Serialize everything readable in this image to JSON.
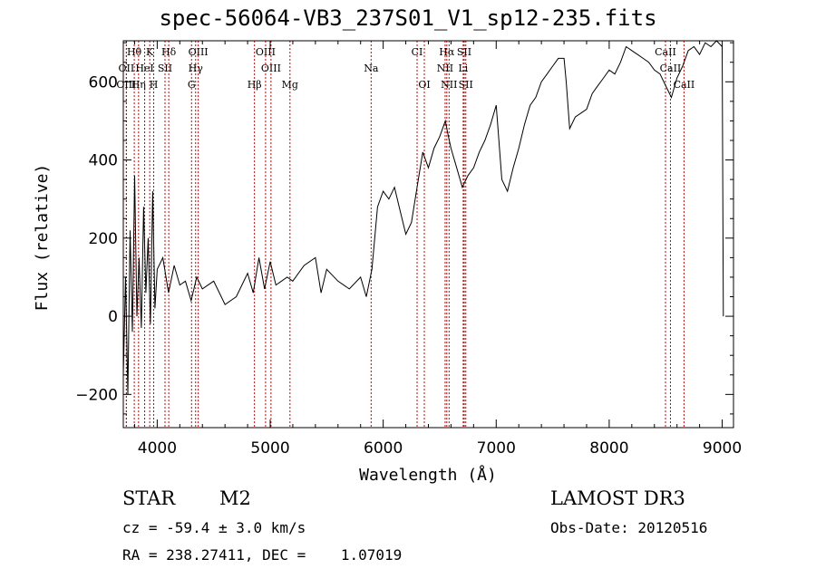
{
  "chart_data": {
    "type": "line",
    "title": "spec-56064-VB3_237S01_V1_sp12-235.fits",
    "xlabel": "Wavelength (Å)",
    "ylabel": "Flux (relative)",
    "xlim": [
      3700,
      9100
    ],
    "ylim": [
      -285,
      705
    ],
    "x_ticks": [
      4000,
      5000,
      6000,
      7000,
      8000,
      9000
    ],
    "y_ticks": [
      -200,
      0,
      200,
      400,
      600
    ],
    "series": [
      {
        "name": "spectrum",
        "x": [
          3700,
          3720,
          3740,
          3760,
          3780,
          3800,
          3820,
          3840,
          3860,
          3880,
          3900,
          3920,
          3940,
          3960,
          3980,
          4000,
          4050,
          4100,
          4150,
          4200,
          4250,
          4300,
          4350,
          4400,
          4500,
          4600,
          4700,
          4800,
          4850,
          4900,
          4950,
          5000,
          5050,
          5100,
          5150,
          5200,
          5300,
          5400,
          5450,
          5500,
          5600,
          5700,
          5800,
          5850,
          5900,
          5950,
          6000,
          6050,
          6100,
          6150,
          6200,
          6250,
          6300,
          6350,
          6400,
          6450,
          6500,
          6550,
          6570,
          6600,
          6650,
          6700,
          6750,
          6800,
          6850,
          6900,
          6950,
          7000,
          7050,
          7100,
          7150,
          7200,
          7250,
          7300,
          7350,
          7400,
          7450,
          7500,
          7550,
          7600,
          7620,
          7650,
          7700,
          7750,
          7800,
          7850,
          7900,
          7950,
          8000,
          8050,
          8100,
          8150,
          8200,
          8250,
          8300,
          8350,
          8400,
          8450,
          8500,
          8550,
          8600,
          8650,
          8700,
          8750,
          8800,
          8850,
          8900,
          8950,
          9000,
          9010
        ],
        "y": [
          -150,
          100,
          -200,
          220,
          -40,
          360,
          0,
          150,
          -30,
          280,
          60,
          200,
          -20,
          320,
          20,
          120,
          150,
          60,
          130,
          80,
          90,
          40,
          100,
          70,
          90,
          30,
          50,
          110,
          60,
          150,
          70,
          140,
          80,
          90,
          100,
          90,
          130,
          150,
          60,
          120,
          90,
          70,
          100,
          50,
          120,
          280,
          320,
          300,
          330,
          270,
          210,
          240,
          330,
          420,
          380,
          430,
          460,
          500,
          470,
          430,
          380,
          330,
          360,
          380,
          420,
          450,
          490,
          540,
          350,
          320,
          380,
          430,
          490,
          540,
          560,
          600,
          620,
          640,
          660,
          660,
          600,
          480,
          510,
          520,
          530,
          570,
          590,
          610,
          630,
          620,
          650,
          690,
          680,
          670,
          660,
          650,
          630,
          620,
          590,
          560,
          610,
          640,
          680,
          690,
          670,
          700,
          690,
          710,
          690,
          0
        ]
      }
    ],
    "line_markers": [
      {
        "label": "Hθ",
        "x": 3797,
        "row": 1
      },
      {
        "label": "K",
        "x": 3934,
        "row": 1
      },
      {
        "label": "Hδ",
        "x": 4102,
        "row": 1
      },
      {
        "label": "OIII",
        "x": 4363,
        "row": 1
      },
      {
        "label": "OIII",
        "x": 4959,
        "row": 1
      },
      {
        "label": "CI",
        "x": 6300,
        "row": 1
      },
      {
        "label": "Hα",
        "x": 6563,
        "row": 1
      },
      {
        "label": "SII",
        "x": 6717,
        "row": 1
      },
      {
        "label": "CaII",
        "x": 8498,
        "row": 1
      },
      {
        "label": "OII",
        "x": 3727,
        "row": 2
      },
      {
        "label": "HeI",
        "x": 3889,
        "row": 2
      },
      {
        "label": "SII",
        "x": 4069,
        "row": 2
      },
      {
        "label": "Hγ",
        "x": 4340,
        "row": 2
      },
      {
        "label": "OIII",
        "x": 5007,
        "row": 2
      },
      {
        "label": "Na",
        "x": 5893,
        "row": 2
      },
      {
        "label": "NII",
        "x": 6548,
        "row": 2
      },
      {
        "label": "Li",
        "x": 6708,
        "row": 2
      },
      {
        "label": "CaII",
        "x": 8542,
        "row": 2
      },
      {
        "label": "OIII",
        "x": 3727,
        "row": 3
      },
      {
        "label": "Hη",
        "x": 3835,
        "row": 3
      },
      {
        "label": "H",
        "x": 3969,
        "row": 3
      },
      {
        "label": "G",
        "x": 4304,
        "row": 3
      },
      {
        "label": "Hβ",
        "x": 4861,
        "row": 3
      },
      {
        "label": "Mg",
        "x": 5175,
        "row": 3
      },
      {
        "label": "OI",
        "x": 6364,
        "row": 3
      },
      {
        "label": "NII",
        "x": 6583,
        "row": 3
      },
      {
        "label": "SII",
        "x": 6731,
        "row": 3
      },
      {
        "label": "CaII",
        "x": 8662,
        "row": 3
      }
    ]
  },
  "info": {
    "object_type": "STAR",
    "subclass": "M2",
    "survey": "LAMOST DR3",
    "redshift_line": "cz = -59.4 ± 3.0 km/s",
    "obs_date": "Obs-Date: 20120516",
    "coords": "RA = 238.27411, DEC =    1.07019"
  },
  "colors": {
    "spectrum": "#000000",
    "marker_line": "#cc0000",
    "axes": "#000000"
  }
}
